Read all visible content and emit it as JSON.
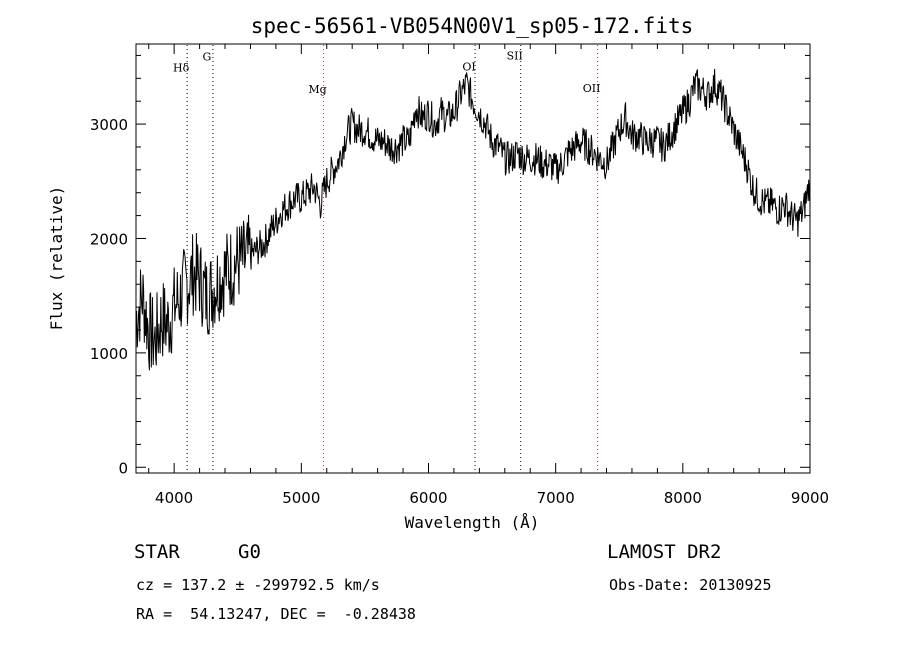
{
  "chart_data": {
    "type": "line",
    "title": "spec-56561-VB054N00V1_sp05-172.fits",
    "xlabel": "Wavelength (Å)",
    "ylabel": "Flux (relative)",
    "xlim": [
      3700,
      9000
    ],
    "ylim": [
      -50,
      3700
    ],
    "xticks": [
      4000,
      5000,
      6000,
      7000,
      8000,
      9000
    ],
    "yticks": [
      0,
      1000,
      2000,
      3000
    ],
    "x": [
      3700,
      3750,
      3800,
      3850,
      3900,
      3950,
      4000,
      4050,
      4100,
      4150,
      4200,
      4250,
      4300,
      4350,
      4400,
      4450,
      4500,
      4550,
      4600,
      4650,
      4700,
      4750,
      4800,
      4850,
      4900,
      4950,
      5000,
      5050,
      5100,
      5150,
      5200,
      5250,
      5300,
      5350,
      5400,
      5450,
      5500,
      5550,
      5600,
      5650,
      5700,
      5750,
      5800,
      5850,
      5900,
      5950,
      6000,
      6050,
      6100,
      6150,
      6200,
      6250,
      6300,
      6350,
      6400,
      6450,
      6500,
      6550,
      6600,
      6650,
      6700,
      6750,
      6800,
      6850,
      6900,
      6950,
      7000,
      7050,
      7100,
      7150,
      7200,
      7250,
      7300,
      7350,
      7400,
      7450,
      7500,
      7550,
      7600,
      7650,
      7700,
      7750,
      7800,
      7850,
      7900,
      7950,
      8000,
      8050,
      8100,
      8150,
      8200,
      8250,
      8300,
      8350,
      8400,
      8450,
      8500,
      8550,
      8600,
      8650,
      8700,
      8750,
      8800,
      8850,
      8900,
      8950,
      9000
    ],
    "y": [
      1300,
      1500,
      1200,
      1100,
      1300,
      1250,
      1400,
      1500,
      1600,
      1700,
      1650,
      1500,
      1550,
      1650,
      1700,
      1750,
      1800,
      1800,
      1850,
      1900,
      1950,
      2050,
      2150,
      2250,
      2300,
      2350,
      2350,
      2400,
      2450,
      2300,
      2500,
      2600,
      2700,
      2900,
      3000,
      2950,
      2950,
      2900,
      2850,
      2850,
      2800,
      2800,
      2850,
      2850,
      3150,
      3050,
      3100,
      3000,
      3100,
      3050,
      3100,
      3250,
      3350,
      3200,
      3100,
      3000,
      2850,
      2800,
      2700,
      2700,
      2750,
      2700,
      2700,
      2700,
      2650,
      2650,
      2600,
      2650,
      2750,
      2800,
      2850,
      2800,
      2750,
      2700,
      2650,
      2800,
      2950,
      3050,
      2900,
      2900,
      2850,
      2850,
      2850,
      2800,
      2900,
      3000,
      3100,
      3200,
      3350,
      3300,
      3250,
      3350,
      3250,
      3100,
      2950,
      2800,
      2650,
      2450,
      2350,
      2300,
      2300,
      2250,
      2300,
      2200,
      2150,
      2250,
      2500
    ],
    "lines": [
      {
        "label": "Hδ",
        "wavelength": 4102,
        "label_level": 3460,
        "color": "#000000"
      },
      {
        "label": "G",
        "wavelength": 4305,
        "label_level": 3555,
        "color": "#000000"
      },
      {
        "label": "Mg",
        "wavelength": 5175,
        "label_level": 3270,
        "color": "#c0392b"
      },
      {
        "label": "OI",
        "wavelength": 6366,
        "label_level": 3470,
        "color": "#000000"
      },
      {
        "label": "SII",
        "wavelength": 6725,
        "label_level": 3565,
        "color": "#000000"
      },
      {
        "label": "OII",
        "wavelength": 7330,
        "label_level": 3280,
        "color": "#c0392b"
      }
    ],
    "line_color": "#000000",
    "grid": false,
    "legend": "none"
  },
  "info": {
    "object_class": "STAR",
    "subclass": "G0",
    "redshift": "cz = 137.2 ± -299792.5 km/s",
    "coordinates": "RA =  54.13247, DEC =  -0.28438",
    "survey": "LAMOST DR2",
    "obs_date": "Obs-Date: 20130925"
  }
}
